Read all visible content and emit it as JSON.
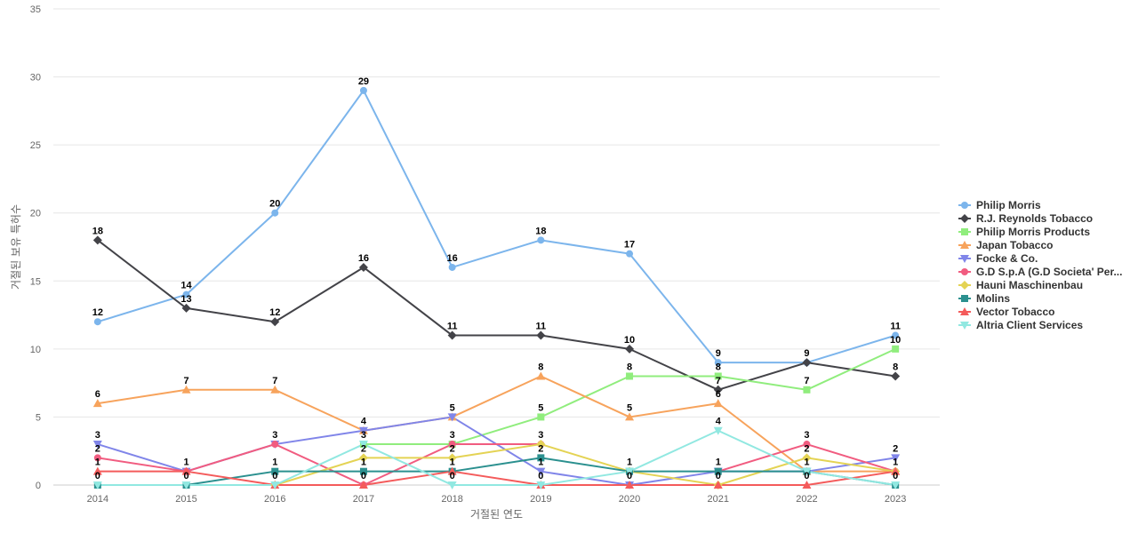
{
  "chart_data": {
    "type": "line",
    "title": "",
    "xlabel": "거절된 연도",
    "ylabel": "거절된 보유 특허수",
    "categories": [
      "2014",
      "2015",
      "2016",
      "2017",
      "2018",
      "2019",
      "2020",
      "2021",
      "2022",
      "2023"
    ],
    "ylim": [
      0,
      35
    ],
    "yticks": [
      0,
      5,
      10,
      15,
      20,
      25,
      30,
      35
    ],
    "grid": true,
    "legend_position": "right",
    "series": [
      {
        "name": "Philip Morris",
        "color": "#7cb5ec",
        "marker": "circle",
        "values": [
          12,
          14,
          20,
          29,
          16,
          18,
          17,
          9,
          9,
          11
        ]
      },
      {
        "name": "R.J. Reynolds Tobacco",
        "color": "#434348",
        "marker": "diamond",
        "values": [
          18,
          13,
          12,
          16,
          11,
          11,
          10,
          7,
          9,
          8
        ]
      },
      {
        "name": "Philip Morris Products",
        "color": "#90ed7d",
        "marker": "square",
        "values": [
          null,
          null,
          null,
          3,
          3,
          5,
          8,
          8,
          7,
          10
        ]
      },
      {
        "name": "Japan Tobacco",
        "color": "#f7a35c",
        "marker": "triangle",
        "values": [
          6,
          7,
          7,
          4,
          5,
          8,
          5,
          6,
          1,
          1
        ]
      },
      {
        "name": "Focke & Co.",
        "color": "#8085e9",
        "marker": "triangle-down",
        "values": [
          3,
          1,
          3,
          4,
          5,
          1,
          0,
          1,
          1,
          2
        ]
      },
      {
        "name": "G.D S.p.A (G.D Societa' Per...",
        "color": "#f15c80",
        "marker": "circle",
        "values": [
          2,
          1,
          3,
          0,
          3,
          3,
          null,
          1,
          3,
          1
        ]
      },
      {
        "name": "Hauni Maschinenbau",
        "color": "#e4d354",
        "marker": "diamond",
        "values": [
          null,
          null,
          0,
          2,
          2,
          3,
          1,
          0,
          2,
          1
        ]
      },
      {
        "name": "Molins",
        "color": "#2b908f",
        "marker": "square",
        "values": [
          0,
          0,
          1,
          1,
          1,
          2,
          1,
          1,
          1,
          0
        ]
      },
      {
        "name": "Vector Tobacco",
        "color": "#f45b5b",
        "marker": "triangle",
        "values": [
          1,
          1,
          0,
          0,
          1,
          0,
          0,
          0,
          0,
          1
        ]
      },
      {
        "name": "Altria Client Services",
        "color": "#91e8e1",
        "marker": "triangle-down",
        "values": [
          0,
          0,
          0,
          3,
          0,
          0,
          1,
          4,
          1,
          0
        ]
      }
    ],
    "data_labels": [
      {
        "x": "2014",
        "values": [
          "18",
          "12",
          "6",
          "3",
          "2",
          "1",
          "0"
        ]
      },
      {
        "x": "2015",
        "values": [
          "14",
          "13",
          "7",
          "1",
          "0"
        ]
      },
      {
        "x": "2016",
        "values": [
          "20",
          "12",
          "7",
          "3",
          "1",
          "0"
        ]
      },
      {
        "x": "2017",
        "values": [
          "29",
          "16",
          "4",
          "3",
          "2",
          "1",
          "0"
        ]
      },
      {
        "x": "2018",
        "values": [
          "16",
          "11",
          "5",
          "3",
          "2",
          "1",
          "0"
        ]
      },
      {
        "x": "2019",
        "values": [
          "18",
          "11",
          "8",
          "5",
          "3",
          "2",
          "1",
          "0"
        ]
      },
      {
        "x": "2020",
        "values": [
          "17",
          "10",
          "8",
          "5",
          "1",
          "0"
        ]
      },
      {
        "x": "2021",
        "values": [
          "9",
          "8",
          "7",
          "6",
          "4",
          "1",
          "0"
        ]
      },
      {
        "x": "2022",
        "values": [
          "9",
          "7",
          "3",
          "2",
          "1",
          "0"
        ]
      },
      {
        "x": "2023",
        "values": [
          "11",
          "10",
          "8",
          "2",
          "1",
          "0"
        ]
      }
    ]
  }
}
